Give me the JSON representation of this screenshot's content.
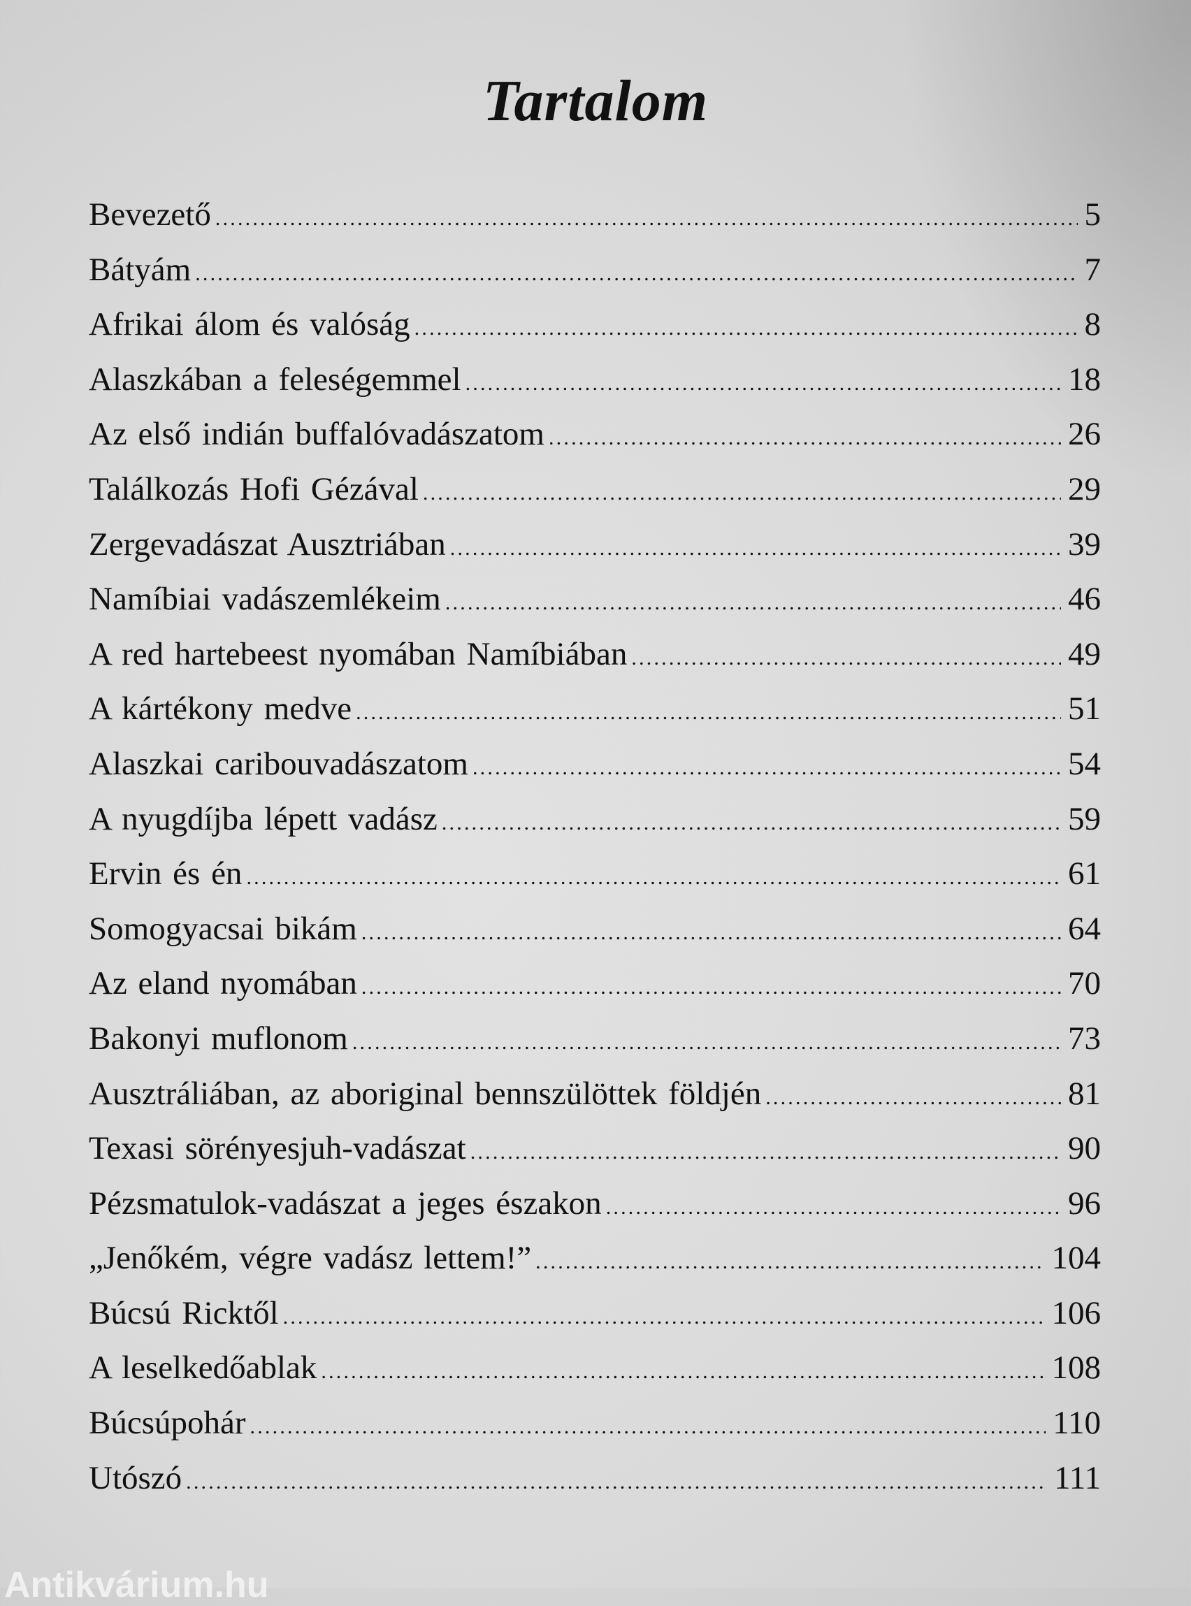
{
  "title": "Tartalom",
  "entries": [
    {
      "label": "Bevezető",
      "page": "5"
    },
    {
      "label": "Bátyám",
      "page": "7"
    },
    {
      "label": "Afrikai álom és valóság",
      "page": "8"
    },
    {
      "label": "Alaszkában a feleségemmel",
      "page": "18"
    },
    {
      "label": "Az első indián buffalóvadászatom",
      "page": "26"
    },
    {
      "label": "Találkozás Hofi Gézával",
      "page": "29"
    },
    {
      "label": "Zergevadászat Ausztriában",
      "page": "39"
    },
    {
      "label": "Namíbiai vadászemlékeim",
      "page": "46"
    },
    {
      "label": "A red hartebeest nyomában Namíbiában",
      "page": "49"
    },
    {
      "label": "A kártékony medve",
      "page": "51"
    },
    {
      "label": "Alaszkai caribouvadászatom",
      "page": "54"
    },
    {
      "label": "A nyugdíjba lépett vadász",
      "page": "59"
    },
    {
      "label": "Ervin és én",
      "page": "61"
    },
    {
      "label": "Somogyacsai bikám",
      "page": "64"
    },
    {
      "label": "Az eland nyomában",
      "page": "70"
    },
    {
      "label": "Bakonyi muflonom",
      "page": "73"
    },
    {
      "label": "Ausztráliában, az aboriginal bennszülöttek földjén",
      "page": "81"
    },
    {
      "label": "Texasi sörényesjuh-vadászat",
      "page": "90"
    },
    {
      "label": "Pézsmatulok-vadászat a jeges északon",
      "page": "96"
    },
    {
      "label": "„Jenőkém, végre vadász lettem!”",
      "page": "104"
    },
    {
      "label": "Búcsú Ricktől",
      "page": "106"
    },
    {
      "label": "A leselkedőablak",
      "page": "108"
    },
    {
      "label": "Búcsúpohár",
      "page": "110"
    },
    {
      "label": "Utószó",
      "page": "111"
    }
  ],
  "watermark": "Antikvárium.hu"
}
